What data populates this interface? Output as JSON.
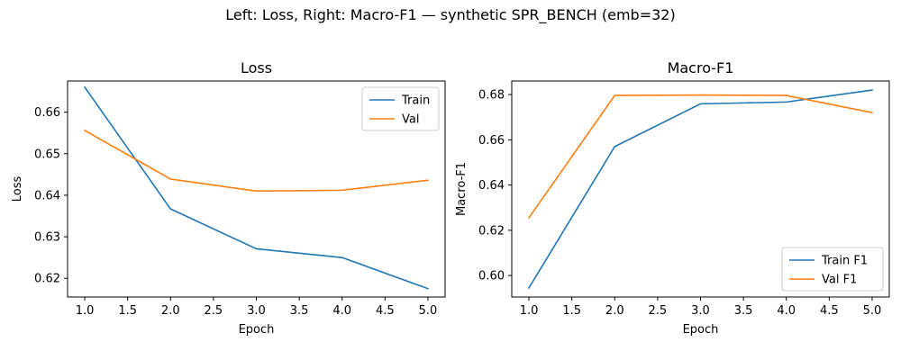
{
  "suptitle": "Left: Loss, Right: Macro-F1 — synthetic SPR_BENCH (emb=32)",
  "chart_data": [
    {
      "type": "line",
      "title": "Loss",
      "xlabel": "Epoch",
      "ylabel": "Loss",
      "x": [
        1,
        2,
        3,
        4,
        5
      ],
      "xlim": [
        0.8,
        5.2
      ],
      "ylim": [
        0.6155,
        0.6675
      ],
      "xticks": [
        1.0,
        1.5,
        2.0,
        2.5,
        3.0,
        3.5,
        4.0,
        4.5,
        5.0
      ],
      "xtick_labels": [
        "1.0",
        "1.5",
        "2.0",
        "2.5",
        "3.0",
        "3.5",
        "4.0",
        "4.5",
        "5.0"
      ],
      "yticks": [
        0.62,
        0.63,
        0.64,
        0.65,
        0.66
      ],
      "ytick_labels": [
        "0.62",
        "0.63",
        "0.64",
        "0.65",
        "0.66"
      ],
      "grid": false,
      "legend": "upper right",
      "series": [
        {
          "name": "Train",
          "color": "#1f77b4",
          "values": [
            0.666,
            0.6367,
            0.6271,
            0.625,
            0.6175
          ]
        },
        {
          "name": "Val",
          "color": "#ff7f0e",
          "values": [
            0.6556,
            0.6439,
            0.641,
            0.6412,
            0.6436
          ]
        }
      ]
    },
    {
      "type": "line",
      "title": "Macro-F1",
      "xlabel": "Epoch",
      "ylabel": "Macro-F1",
      "x": [
        1,
        2,
        3,
        4,
        5
      ],
      "xlim": [
        0.8,
        5.2
      ],
      "ylim": [
        0.5905,
        0.686
      ],
      "xticks": [
        1.0,
        1.5,
        2.0,
        2.5,
        3.0,
        3.5,
        4.0,
        4.5,
        5.0
      ],
      "xtick_labels": [
        "1.0",
        "1.5",
        "2.0",
        "2.5",
        "3.0",
        "3.5",
        "4.0",
        "4.5",
        "5.0"
      ],
      "yticks": [
        0.6,
        0.62,
        0.64,
        0.66,
        0.68
      ],
      "ytick_labels": [
        "0.60",
        "0.62",
        "0.64",
        "0.66",
        "0.68"
      ],
      "grid": false,
      "legend": "lower right",
      "series": [
        {
          "name": "Train F1",
          "color": "#1f77b4",
          "values": [
            0.5945,
            0.657,
            0.6759,
            0.6767,
            0.682
          ]
        },
        {
          "name": "Val F1",
          "color": "#ff7f0e",
          "values": [
            0.6255,
            0.6796,
            0.6798,
            0.6796,
            0.672
          ]
        }
      ]
    }
  ]
}
